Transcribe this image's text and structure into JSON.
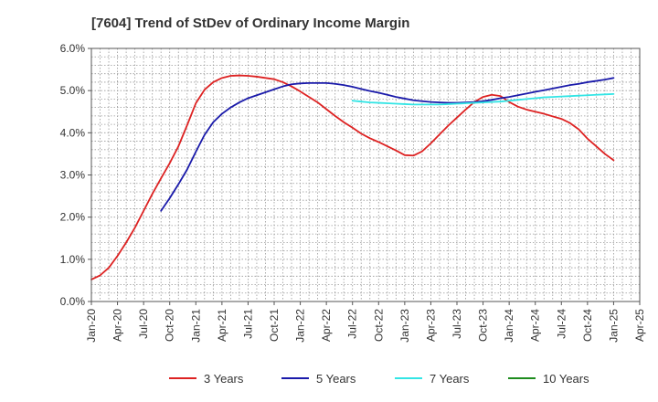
{
  "chart_data": {
    "type": "line",
    "title": "[7604]  Trend of StDev of Ordinary Income Margin",
    "xlabel": "",
    "ylabel": "",
    "x_ticks": [
      "Jan-20",
      "Apr-20",
      "Jul-20",
      "Oct-20",
      "Jan-21",
      "Apr-21",
      "Jul-21",
      "Oct-21",
      "Jan-22",
      "Apr-22",
      "Jul-22",
      "Oct-22",
      "Jan-23",
      "Apr-23",
      "Jul-23",
      "Oct-23",
      "Jan-24",
      "Apr-24",
      "Jul-24",
      "Oct-24",
      "Jan-25",
      "Apr-25"
    ],
    "y_ticks": [
      "0.0%",
      "1.0%",
      "2.0%",
      "3.0%",
      "4.0%",
      "5.0%",
      "6.0%"
    ],
    "ylim": [
      0,
      6
    ],
    "grid": true,
    "legend_position": "bottom",
    "series": [
      {
        "name": "3 Years",
        "color": "#dd2222",
        "points": [
          [
            "Jan-20",
            0.52
          ],
          [
            "Feb-20",
            0.62
          ],
          [
            "Mar-20",
            0.8
          ],
          [
            "Apr-20",
            1.08
          ],
          [
            "May-20",
            1.4
          ],
          [
            "Jun-20",
            1.75
          ],
          [
            "Jul-20",
            2.15
          ],
          [
            "Aug-20",
            2.55
          ],
          [
            "Sep-20",
            2.92
          ],
          [
            "Oct-20",
            3.28
          ],
          [
            "Nov-20",
            3.68
          ],
          [
            "Dec-20",
            4.18
          ],
          [
            "Jan-21",
            4.7
          ],
          [
            "Feb-21",
            5.02
          ],
          [
            "Mar-21",
            5.2
          ],
          [
            "Apr-21",
            5.3
          ],
          [
            "May-21",
            5.35
          ],
          [
            "Jun-21",
            5.36
          ],
          [
            "Jul-21",
            5.35
          ],
          [
            "Aug-21",
            5.33
          ],
          [
            "Sep-21",
            5.3
          ],
          [
            "Oct-21",
            5.27
          ],
          [
            "Nov-21",
            5.2
          ],
          [
            "Dec-21",
            5.1
          ],
          [
            "Jan-22",
            4.98
          ],
          [
            "Feb-22",
            4.85
          ],
          [
            "Mar-22",
            4.72
          ],
          [
            "Apr-22",
            4.56
          ],
          [
            "May-22",
            4.4
          ],
          [
            "Jun-22",
            4.25
          ],
          [
            "Jul-22",
            4.12
          ],
          [
            "Aug-22",
            3.98
          ],
          [
            "Sep-22",
            3.87
          ],
          [
            "Oct-22",
            3.78
          ],
          [
            "Nov-22",
            3.68
          ],
          [
            "Dec-22",
            3.58
          ],
          [
            "Jan-23",
            3.47
          ],
          [
            "Feb-23",
            3.46
          ],
          [
            "Mar-23",
            3.56
          ],
          [
            "Apr-23",
            3.75
          ],
          [
            "May-23",
            3.96
          ],
          [
            "Jun-23",
            4.17
          ],
          [
            "Jul-23",
            4.36
          ],
          [
            "Aug-23",
            4.55
          ],
          [
            "Sep-23",
            4.73
          ],
          [
            "Oct-23",
            4.85
          ],
          [
            "Nov-23",
            4.9
          ],
          [
            "Dec-23",
            4.87
          ],
          [
            "Jan-24",
            4.73
          ],
          [
            "Feb-24",
            4.62
          ],
          [
            "Mar-24",
            4.55
          ],
          [
            "Apr-24",
            4.5
          ],
          [
            "May-24",
            4.45
          ],
          [
            "Jun-24",
            4.39
          ],
          [
            "Jul-24",
            4.33
          ],
          [
            "Aug-24",
            4.23
          ],
          [
            "Sep-24",
            4.08
          ],
          [
            "Oct-24",
            3.86
          ],
          [
            "Nov-24",
            3.68
          ],
          [
            "Dec-24",
            3.5
          ],
          [
            "Jan-25",
            3.35
          ]
        ]
      },
      {
        "name": "5 Years",
        "color": "#1a1aaa",
        "points": [
          [
            "Sep-20",
            2.15
          ],
          [
            "Oct-20",
            2.45
          ],
          [
            "Nov-20",
            2.78
          ],
          [
            "Dec-20",
            3.13
          ],
          [
            "Jan-21",
            3.55
          ],
          [
            "Feb-21",
            3.95
          ],
          [
            "Mar-21",
            4.25
          ],
          [
            "Apr-21",
            4.45
          ],
          [
            "May-21",
            4.6
          ],
          [
            "Jun-21",
            4.72
          ],
          [
            "Jul-21",
            4.82
          ],
          [
            "Aug-21",
            4.89
          ],
          [
            "Sep-21",
            4.96
          ],
          [
            "Oct-21",
            5.03
          ],
          [
            "Nov-21",
            5.1
          ],
          [
            "Dec-21",
            5.15
          ],
          [
            "Jan-22",
            5.17
          ],
          [
            "Feb-22",
            5.18
          ],
          [
            "Mar-22",
            5.18
          ],
          [
            "Apr-22",
            5.18
          ],
          [
            "May-22",
            5.16
          ],
          [
            "Jun-22",
            5.13
          ],
          [
            "Jul-22",
            5.09
          ],
          [
            "Aug-22",
            5.04
          ],
          [
            "Sep-22",
            4.99
          ],
          [
            "Oct-22",
            4.95
          ],
          [
            "Nov-22",
            4.9
          ],
          [
            "Dec-22",
            4.85
          ],
          [
            "Jan-23",
            4.81
          ],
          [
            "Feb-23",
            4.77
          ],
          [
            "Mar-23",
            4.75
          ],
          [
            "Apr-23",
            4.73
          ],
          [
            "May-23",
            4.72
          ],
          [
            "Jun-23",
            4.71
          ],
          [
            "Jul-23",
            4.71
          ],
          [
            "Aug-23",
            4.72
          ],
          [
            "Sep-23",
            4.73
          ],
          [
            "Oct-23",
            4.75
          ],
          [
            "Nov-23",
            4.78
          ],
          [
            "Dec-23",
            4.82
          ],
          [
            "Jan-24",
            4.85
          ],
          [
            "Feb-24",
            4.89
          ],
          [
            "Mar-24",
            4.93
          ],
          [
            "Apr-24",
            4.97
          ],
          [
            "May-24",
            5.01
          ],
          [
            "Jun-24",
            5.05
          ],
          [
            "Jul-24",
            5.09
          ],
          [
            "Aug-24",
            5.13
          ],
          [
            "Sep-24",
            5.16
          ],
          [
            "Oct-24",
            5.2
          ],
          [
            "Nov-24",
            5.23
          ],
          [
            "Dec-24",
            5.26
          ],
          [
            "Jan-25",
            5.3
          ]
        ]
      },
      {
        "name": "7 Years",
        "color": "#33e5e5",
        "points": [
          [
            "Jul-22",
            4.76
          ],
          [
            "Aug-22",
            4.74
          ],
          [
            "Sep-22",
            4.72
          ],
          [
            "Oct-22",
            4.71
          ],
          [
            "Nov-22",
            4.7
          ],
          [
            "Dec-22",
            4.69
          ],
          [
            "Jan-23",
            4.68
          ],
          [
            "Feb-23",
            4.67
          ],
          [
            "Mar-23",
            4.67
          ],
          [
            "Apr-23",
            4.67
          ],
          [
            "May-23",
            4.67
          ],
          [
            "Jun-23",
            4.68
          ],
          [
            "Jul-23",
            4.69
          ],
          [
            "Aug-23",
            4.7
          ],
          [
            "Sep-23",
            4.71
          ],
          [
            "Oct-23",
            4.72
          ],
          [
            "Nov-23",
            4.73
          ],
          [
            "Dec-23",
            4.74
          ],
          [
            "Jan-24",
            4.76
          ],
          [
            "Feb-24",
            4.78
          ],
          [
            "Mar-24",
            4.8
          ],
          [
            "Apr-24",
            4.82
          ],
          [
            "May-24",
            4.84
          ],
          [
            "Jun-24",
            4.85
          ],
          [
            "Jul-24",
            4.86
          ],
          [
            "Aug-24",
            4.87
          ],
          [
            "Sep-24",
            4.88
          ],
          [
            "Oct-24",
            4.89
          ],
          [
            "Nov-24",
            4.9
          ],
          [
            "Dec-24",
            4.91
          ],
          [
            "Jan-25",
            4.92
          ]
        ]
      },
      {
        "name": "10 Years",
        "color": "#1e8c1e",
        "points": []
      }
    ]
  }
}
